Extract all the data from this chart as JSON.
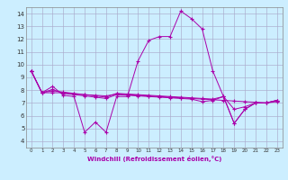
{
  "title": "",
  "xlabel": "Windchill (Refroidissement éolien,°C)",
  "ylabel": "",
  "background_color": "#cceeff",
  "line_color": "#aa00aa",
  "grid_color": "#aaaacc",
  "xlim": [
    -0.5,
    23.5
  ],
  "ylim": [
    3.5,
    14.5
  ],
  "xticks": [
    0,
    1,
    2,
    3,
    4,
    5,
    6,
    7,
    8,
    9,
    10,
    11,
    12,
    13,
    14,
    15,
    16,
    17,
    18,
    19,
    20,
    21,
    22,
    23
  ],
  "yticks": [
    4,
    5,
    6,
    7,
    8,
    9,
    10,
    11,
    12,
    13,
    14
  ],
  "lines": [
    [
      9.5,
      7.8,
      8.3,
      7.6,
      7.5,
      4.7,
      5.5,
      4.7,
      7.5,
      7.5,
      10.3,
      11.9,
      12.2,
      12.2,
      14.2,
      13.6,
      12.8,
      9.5,
      7.5,
      5.4,
      6.5,
      7.0,
      7.0,
      7.2
    ],
    [
      9.5,
      7.8,
      7.8,
      7.8,
      7.7,
      7.65,
      7.6,
      7.55,
      7.7,
      7.65,
      7.6,
      7.55,
      7.5,
      7.45,
      7.4,
      7.35,
      7.3,
      7.25,
      7.2,
      7.15,
      7.1,
      7.05,
      7.0,
      7.1
    ],
    [
      9.5,
      7.8,
      7.95,
      7.85,
      7.75,
      7.65,
      7.55,
      7.45,
      7.75,
      7.7,
      7.65,
      7.6,
      7.55,
      7.5,
      7.45,
      7.4,
      7.35,
      7.3,
      7.5,
      6.5,
      6.7,
      7.0,
      7.0,
      7.2
    ],
    [
      9.5,
      7.8,
      8.05,
      7.75,
      7.65,
      7.55,
      7.45,
      7.35,
      7.65,
      7.6,
      7.55,
      7.5,
      7.45,
      7.4,
      7.35,
      7.3,
      7.1,
      7.2,
      7.5,
      5.4,
      6.5,
      7.0,
      7.0,
      7.2
    ]
  ]
}
